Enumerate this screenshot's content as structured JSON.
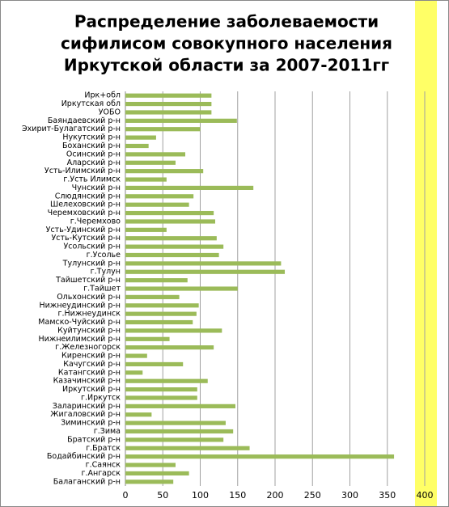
{
  "chart_data": {
    "type": "bar",
    "orientation": "horizontal",
    "title": [
      "Распределение заболеваемости",
      "сифилисом совокупного населения",
      "Иркутской области за 2007-2011гг"
    ],
    "categories": [
      "Ирк+обл",
      "Иркутская обл",
      "УОБО",
      "Баяндаевский р-н",
      "Эхирит-Булагатский р-н",
      "Нукутский р-н",
      "Боханский р-н",
      "Осинский р-н",
      "Аларский р-н",
      "Усть-Илимский р-н",
      "г.Усть Илимск",
      "Чунский р-н",
      "Слюдянский р-н",
      "Шелеховский р-н",
      "Черемховский р-н",
      "г.Черемхово",
      "Усть-Удинский р-н",
      "Усть-Кутский р-н",
      "Усольский р-н",
      "г.Усолье",
      "Тулунский р-н",
      "г.Тулун",
      "Тайшетский р-н",
      "г.Тайшет",
      "Ольхонский р-н",
      "Нижнеудинский р-н",
      "г.Нижнеудинск",
      "Мамско-Чуйский р-н",
      "Куйтунский р-н",
      "Нижнеилимский р-н",
      "г.Железногорск",
      "Киренский р-н",
      "Качугский р-н",
      "Катангский р-н",
      "Казачинский р-н",
      "Иркутский р-н",
      "г.Иркутск",
      "Заларинский р-н",
      "Жигаловский р-н",
      "Зиминский р-н",
      "г.Зима",
      "Братский р-н",
      "г.Братск",
      "Бодайбинский р-н",
      "г.Саянск",
      "г.Ангарск",
      "Балаганский р-н"
    ],
    "values": [
      115,
      115,
      115,
      149,
      100,
      41,
      31,
      80,
      67,
      104,
      55,
      171,
      91,
      85,
      118,
      120,
      55,
      122,
      131,
      125,
      208,
      213,
      83,
      150,
      72,
      98,
      95,
      90,
      129,
      59,
      118,
      29,
      77,
      23,
      110,
      96,
      96,
      147,
      35,
      134,
      144,
      131,
      166,
      359,
      67,
      85,
      64
    ],
    "color": "#9bbb59",
    "xlim": [
      0,
      400
    ],
    "xticks": [
      0,
      50,
      100,
      150,
      200,
      250,
      300,
      350,
      400
    ],
    "grid": true
  }
}
